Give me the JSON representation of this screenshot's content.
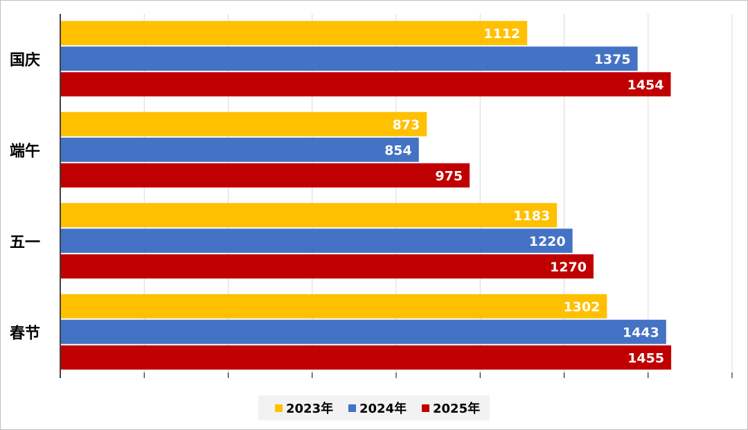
{
  "chart_data": {
    "type": "bar",
    "orientation": "horizontal",
    "categories": [
      "国庆",
      "端午",
      "五一",
      "春节"
    ],
    "series": [
      {
        "name": "2023年",
        "color": "#FFC000",
        "values": [
          1112,
          873,
          1183,
          1302
        ]
      },
      {
        "name": "2024年",
        "color": "#4472C4",
        "values": [
          1375,
          854,
          1220,
          1443
        ]
      },
      {
        "name": "2025年",
        "color": "#C00000",
        "values": [
          1454,
          975,
          1270,
          1455
        ]
      }
    ],
    "xlim": [
      0,
      1600
    ],
    "grid": true,
    "data_labels": true,
    "legend_position": "bottom"
  }
}
